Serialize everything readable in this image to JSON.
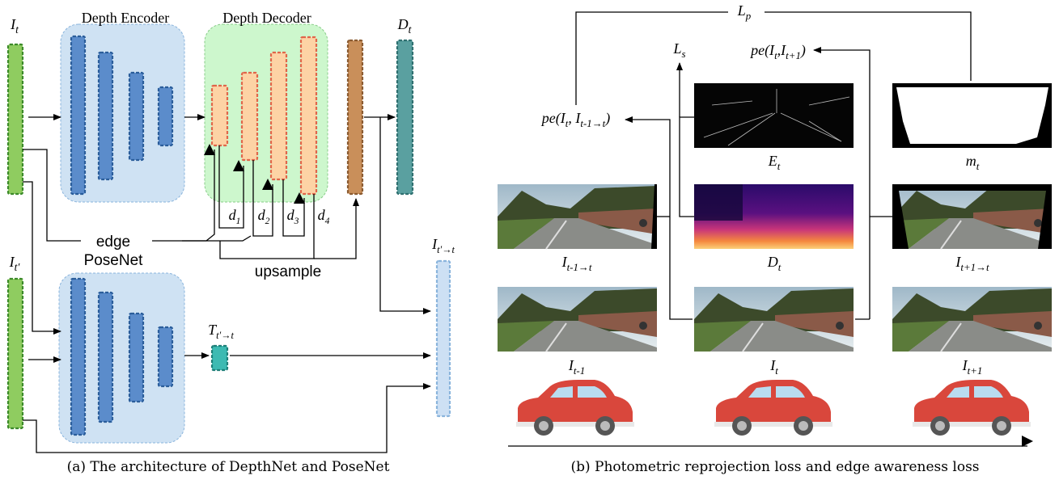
{
  "panel_a": {
    "encoder_title": "Depth Encoder",
    "decoder_title": "Depth Decoder",
    "input_label": [
      {
        "t": "I"
      },
      {
        "s": "t"
      }
    ],
    "output_label": [
      {
        "t": "D"
      },
      {
        "s": "t"
      }
    ],
    "edge": "edge",
    "posenet": "PoseNet",
    "upsample": "upsample",
    "d_labels": [
      [
        {
          "t": "d"
        },
        {
          "s": "1"
        }
      ],
      [
        {
          "t": "d"
        },
        {
          "s": "2"
        }
      ],
      [
        {
          "t": "d"
        },
        {
          "s": "3"
        }
      ],
      [
        {
          "t": "d"
        },
        {
          "s": "4"
        }
      ]
    ],
    "pose_input_label": [
      {
        "t": "I"
      },
      {
        "s": "t′"
      }
    ],
    "pose_output_label": [
      {
        "t": "T"
      },
      {
        "s": "t′→t"
      }
    ],
    "warped_label": [
      {
        "t": "I"
      },
      {
        "s": "t′→t"
      }
    ],
    "caption": "(a) The architecture of DepthNet and PoseNet"
  },
  "panel_b": {
    "lp": [
      {
        "t": "L"
      },
      {
        "s": "p"
      }
    ],
    "ls": [
      {
        "t": "L"
      },
      {
        "s": "s"
      }
    ],
    "pe_next": [
      {
        "t": "pe(I"
      },
      {
        "s": "t"
      },
      {
        "t": ",I"
      },
      {
        "s": "t+1"
      },
      {
        "t": ")"
      }
    ],
    "pe_prev": [
      {
        "t": "pe(I"
      },
      {
        "s": "t"
      },
      {
        "t": ", I"
      },
      {
        "s": "t-1→t"
      },
      {
        "t": ")"
      }
    ],
    "edge_map": [
      {
        "t": "E"
      },
      {
        "s": "t"
      }
    ],
    "mask": [
      {
        "t": "m"
      },
      {
        "s": "t"
      }
    ],
    "depth": [
      {
        "t": "D"
      },
      {
        "s": "t"
      }
    ],
    "warp_prev": [
      {
        "t": "I"
      },
      {
        "s": "t-1→t"
      }
    ],
    "warp_next": [
      {
        "t": "I"
      },
      {
        "s": "t+1→t"
      }
    ],
    "frame_prev": [
      {
        "t": "I"
      },
      {
        "s": "t-1"
      }
    ],
    "frame_cur": [
      {
        "t": "I"
      },
      {
        "s": "t"
      }
    ],
    "frame_next": [
      {
        "t": "I"
      },
      {
        "s": "t+1"
      }
    ],
    "caption": "(b) Photometric reprojection loss and edge awareness loss"
  }
}
